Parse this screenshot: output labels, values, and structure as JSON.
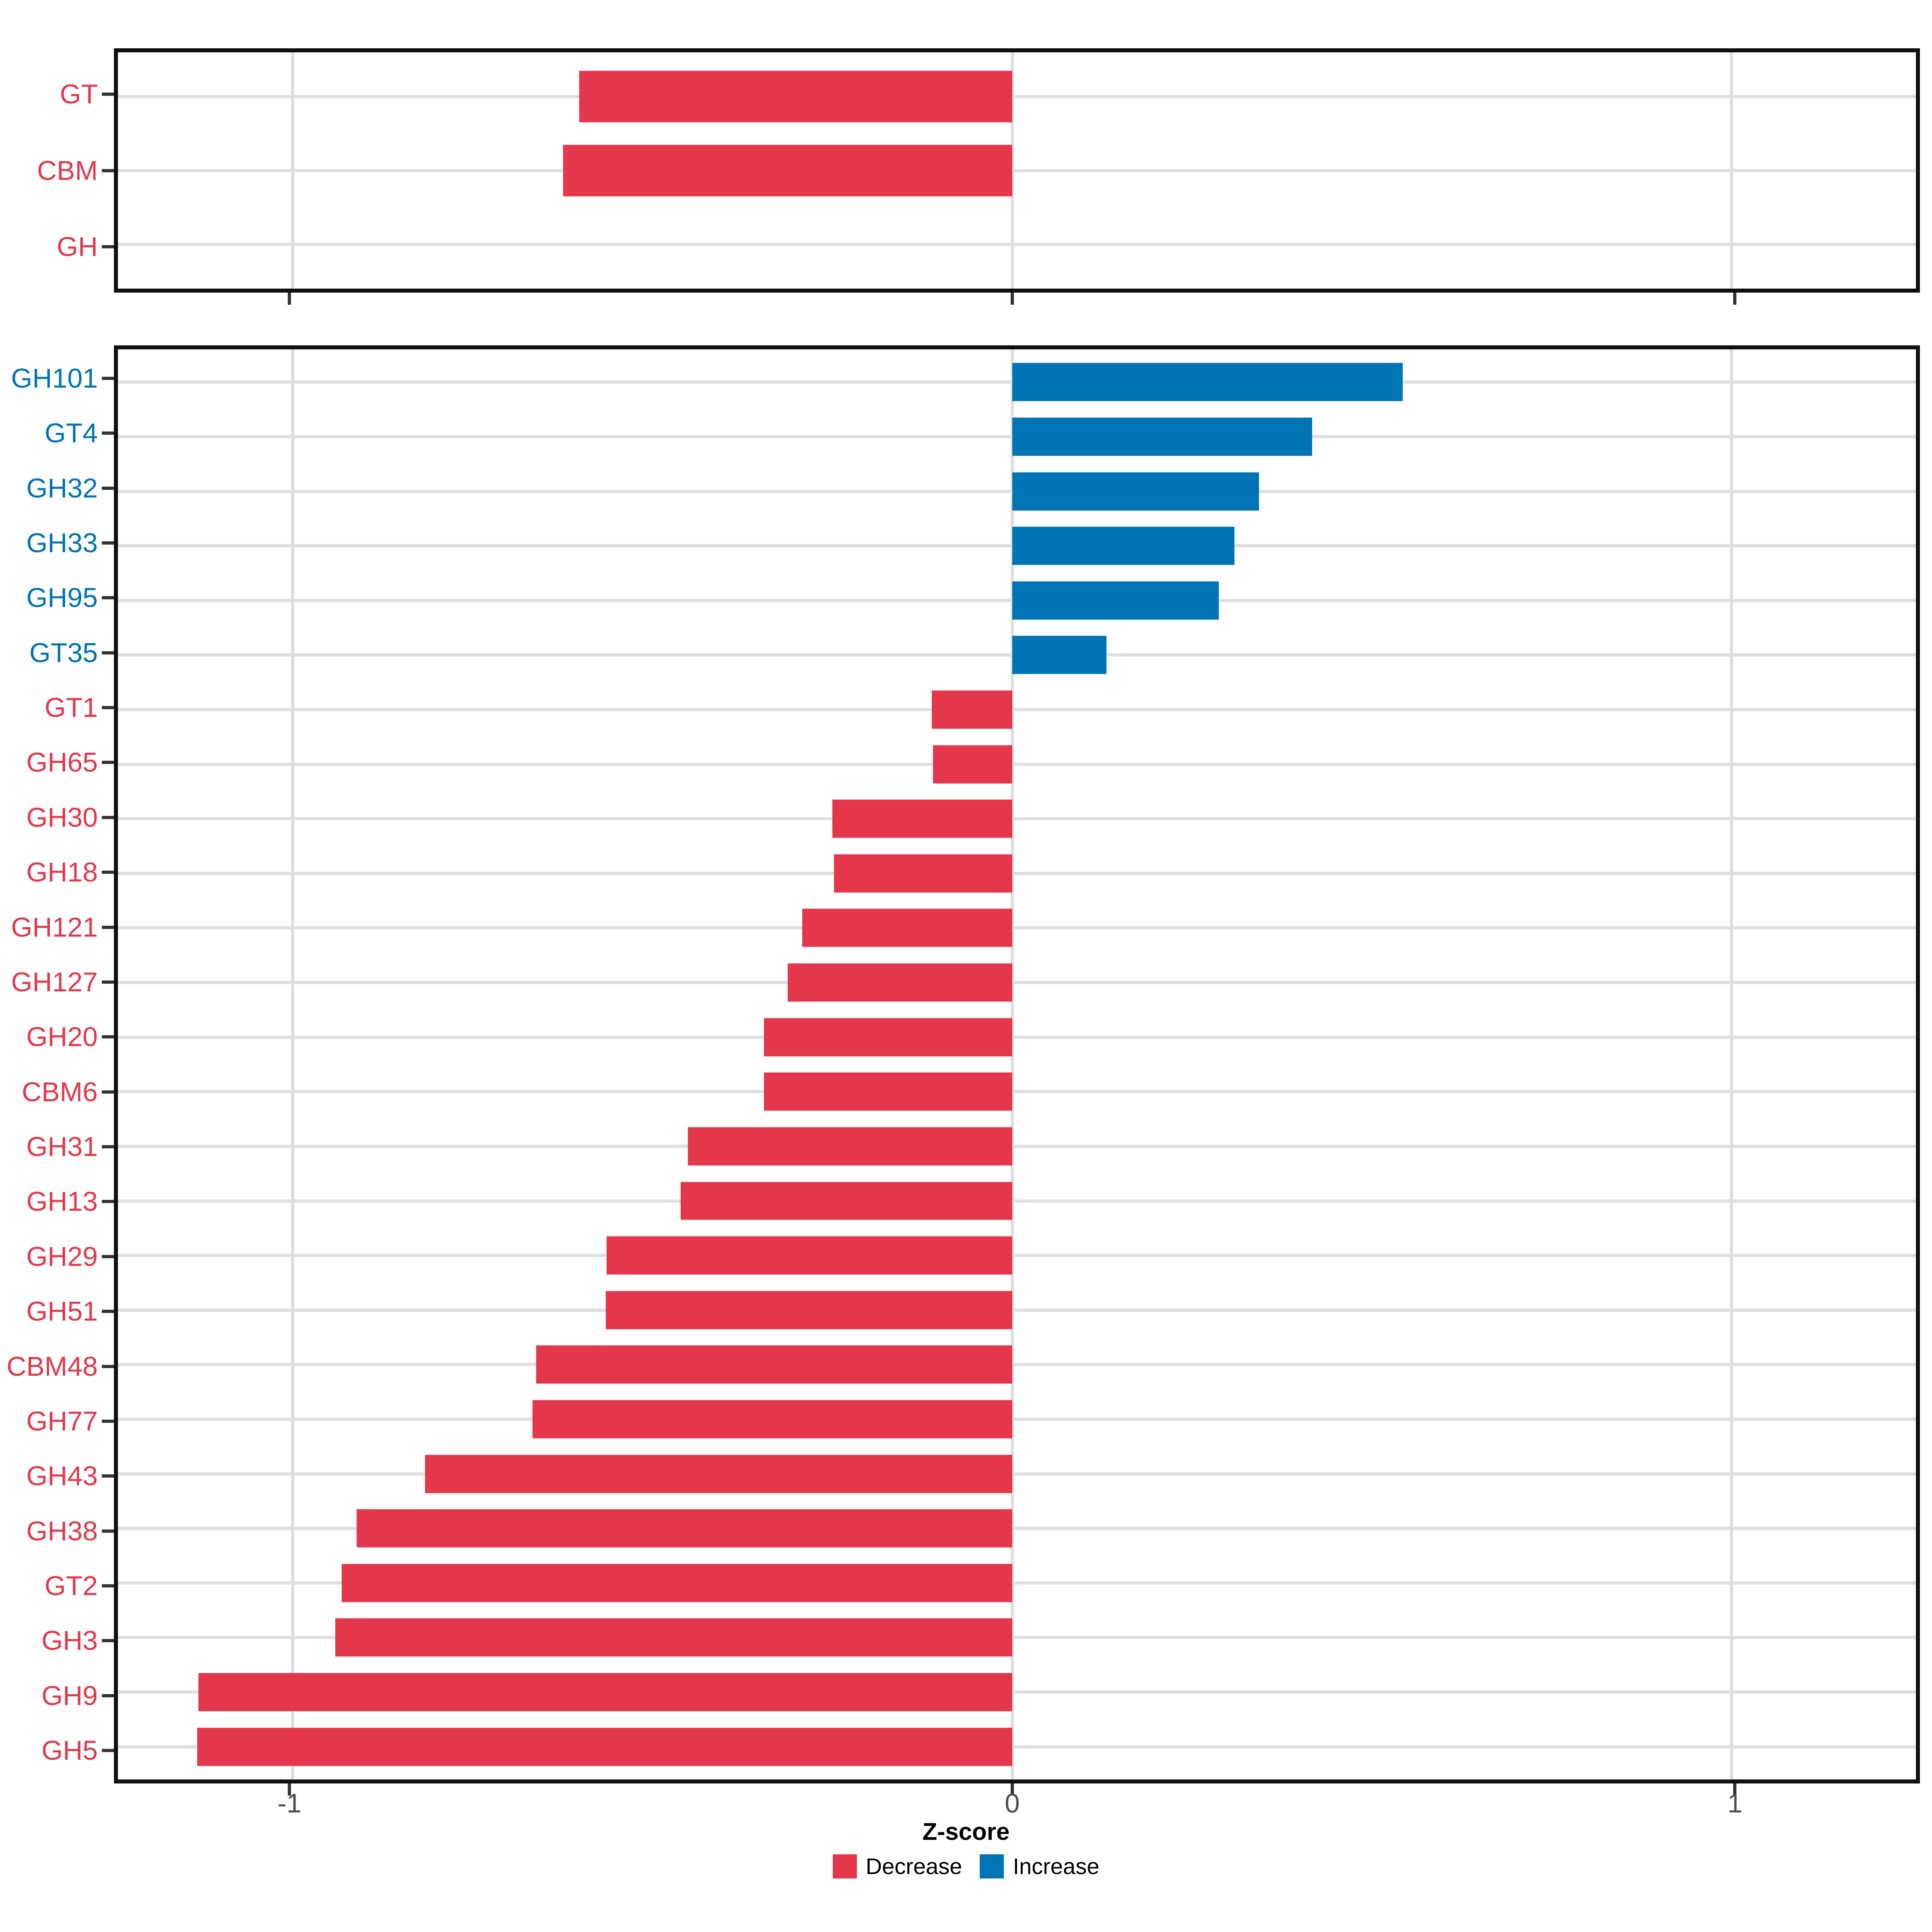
{
  "chart_data": {
    "type": "bar",
    "orientation": "horizontal",
    "title": "",
    "xlabel": "Z-score",
    "ylabel": "",
    "xlim": [
      -1.243,
      1.256
    ],
    "grid": true,
    "x_ticks": [
      {
        "value": -1,
        "label": "-1"
      },
      {
        "value": 0,
        "label": "0"
      },
      {
        "value": 1,
        "label": "1"
      }
    ],
    "colors": {
      "decrease": "#E4374B",
      "increase": "#0074B4"
    },
    "legend": {
      "position": "bottom",
      "entries": [
        {
          "label": "Decrease",
          "key": "decrease"
        },
        {
          "label": "Increase",
          "key": "increase"
        }
      ]
    },
    "panels": [
      {
        "id": "top",
        "rows": [
          {
            "category": "GT",
            "value": -0.602,
            "direction": "decrease"
          },
          {
            "category": "CBM",
            "value": -0.624,
            "direction": "decrease"
          },
          {
            "category": "GH",
            "value": 0,
            "direction": "decrease"
          }
        ]
      },
      {
        "id": "bottom",
        "rows": [
          {
            "category": "GH101",
            "value": 0.543,
            "direction": "increase"
          },
          {
            "category": "GT4",
            "value": 0.417,
            "direction": "increase"
          },
          {
            "category": "GH32",
            "value": 0.343,
            "direction": "increase"
          },
          {
            "category": "GH33",
            "value": 0.309,
            "direction": "increase"
          },
          {
            "category": "GH95",
            "value": 0.287,
            "direction": "increase"
          },
          {
            "category": "GT35",
            "value": 0.131,
            "direction": "increase"
          },
          {
            "category": "GT1",
            "value": -0.112,
            "direction": "decrease"
          },
          {
            "category": "GH65",
            "value": -0.11,
            "direction": "decrease"
          },
          {
            "category": "GH30",
            "value": -0.25,
            "direction": "decrease"
          },
          {
            "category": "GH18",
            "value": -0.248,
            "direction": "decrease"
          },
          {
            "category": "GH121",
            "value": -0.292,
            "direction": "decrease"
          },
          {
            "category": "GH127",
            "value": -0.312,
            "direction": "decrease"
          },
          {
            "category": "GH20",
            "value": -0.345,
            "direction": "decrease"
          },
          {
            "category": "CBM6",
            "value": -0.345,
            "direction": "decrease"
          },
          {
            "category": "GH31",
            "value": -0.451,
            "direction": "decrease"
          },
          {
            "category": "GH13",
            "value": -0.461,
            "direction": "decrease"
          },
          {
            "category": "GH29",
            "value": -0.564,
            "direction": "decrease"
          },
          {
            "category": "GH51",
            "value": -0.565,
            "direction": "decrease"
          },
          {
            "category": "CBM48",
            "value": -0.662,
            "direction": "decrease"
          },
          {
            "category": "GH77",
            "value": -0.667,
            "direction": "decrease"
          },
          {
            "category": "GH43",
            "value": -0.816,
            "direction": "decrease"
          },
          {
            "category": "GH38",
            "value": -0.911,
            "direction": "decrease"
          },
          {
            "category": "GT2",
            "value": -0.932,
            "direction": "decrease"
          },
          {
            "category": "GH3",
            "value": -0.941,
            "direction": "decrease"
          },
          {
            "category": "GH9",
            "value": -1.131,
            "direction": "decrease"
          },
          {
            "category": "GH5",
            "value": -1.133,
            "direction": "decrease"
          }
        ]
      }
    ]
  }
}
